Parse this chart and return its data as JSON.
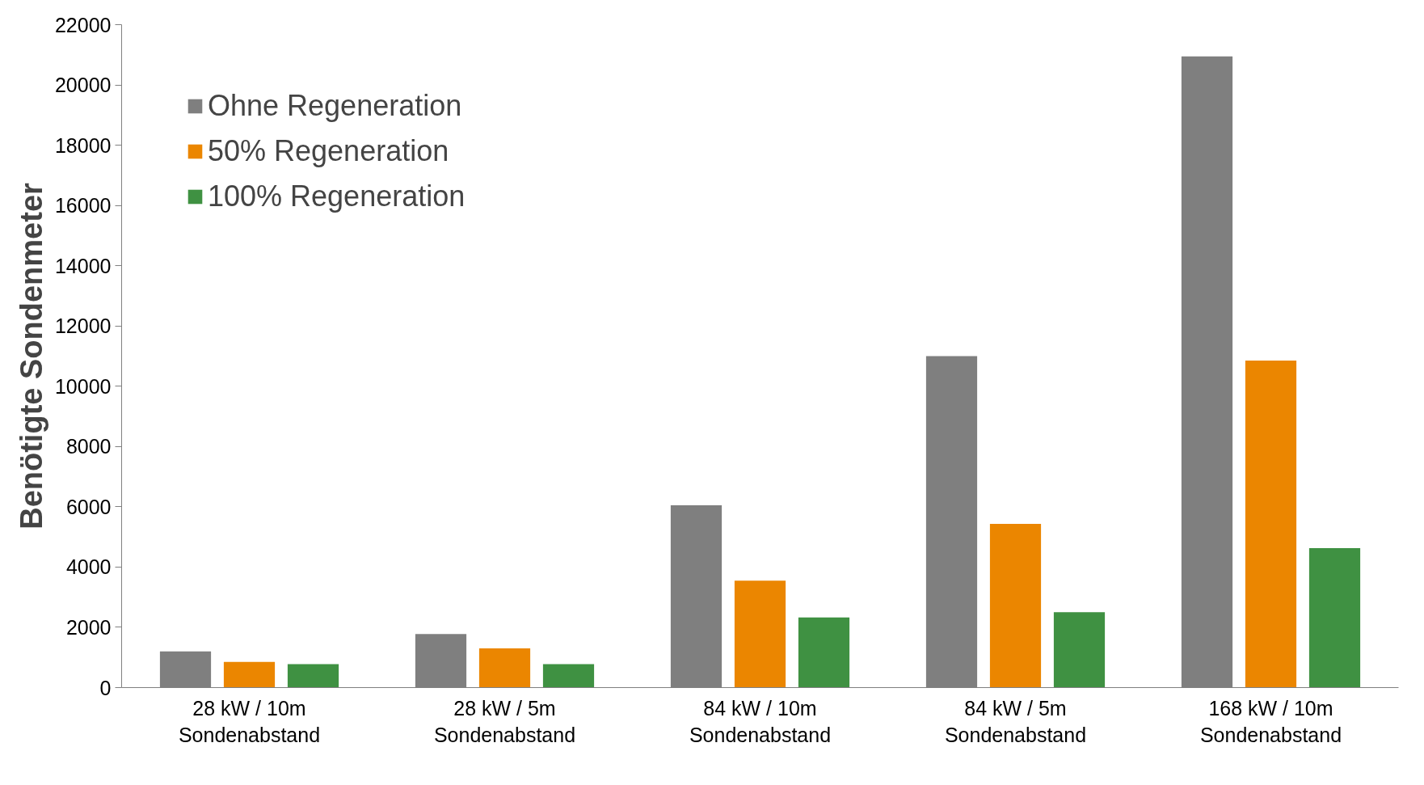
{
  "chart_data": {
    "type": "bar",
    "ylabel": "Benötigte Sondenmeter",
    "categories": [
      "28 kW / 10m\nSondenabstand",
      "28 kW / 5m\nSondenabstand",
      "84 kW / 10m\nSondenabstand",
      "84 kW / 5m\nSondenabstand",
      "168 kW / 10m\nSondenabstand"
    ],
    "series": [
      {
        "name": "Ohne Regeneration",
        "color": "#7f7f7f",
        "values": [
          1200,
          1780,
          6050,
          11000,
          20950
        ]
      },
      {
        "name": "50% Regeneration",
        "color": "#eb8600",
        "values": [
          850,
          1300,
          3550,
          5430,
          10850
        ]
      },
      {
        "name": "100% Regeneration",
        "color": "#3f9142",
        "values": [
          780,
          780,
          2330,
          2500,
          4630
        ]
      }
    ],
    "ylim": [
      0,
      22000
    ],
    "yticks": [
      0,
      2000,
      4000,
      6000,
      8000,
      10000,
      12000,
      14000,
      16000,
      18000,
      20000,
      22000
    ],
    "grid": false,
    "legend": "top left"
  }
}
